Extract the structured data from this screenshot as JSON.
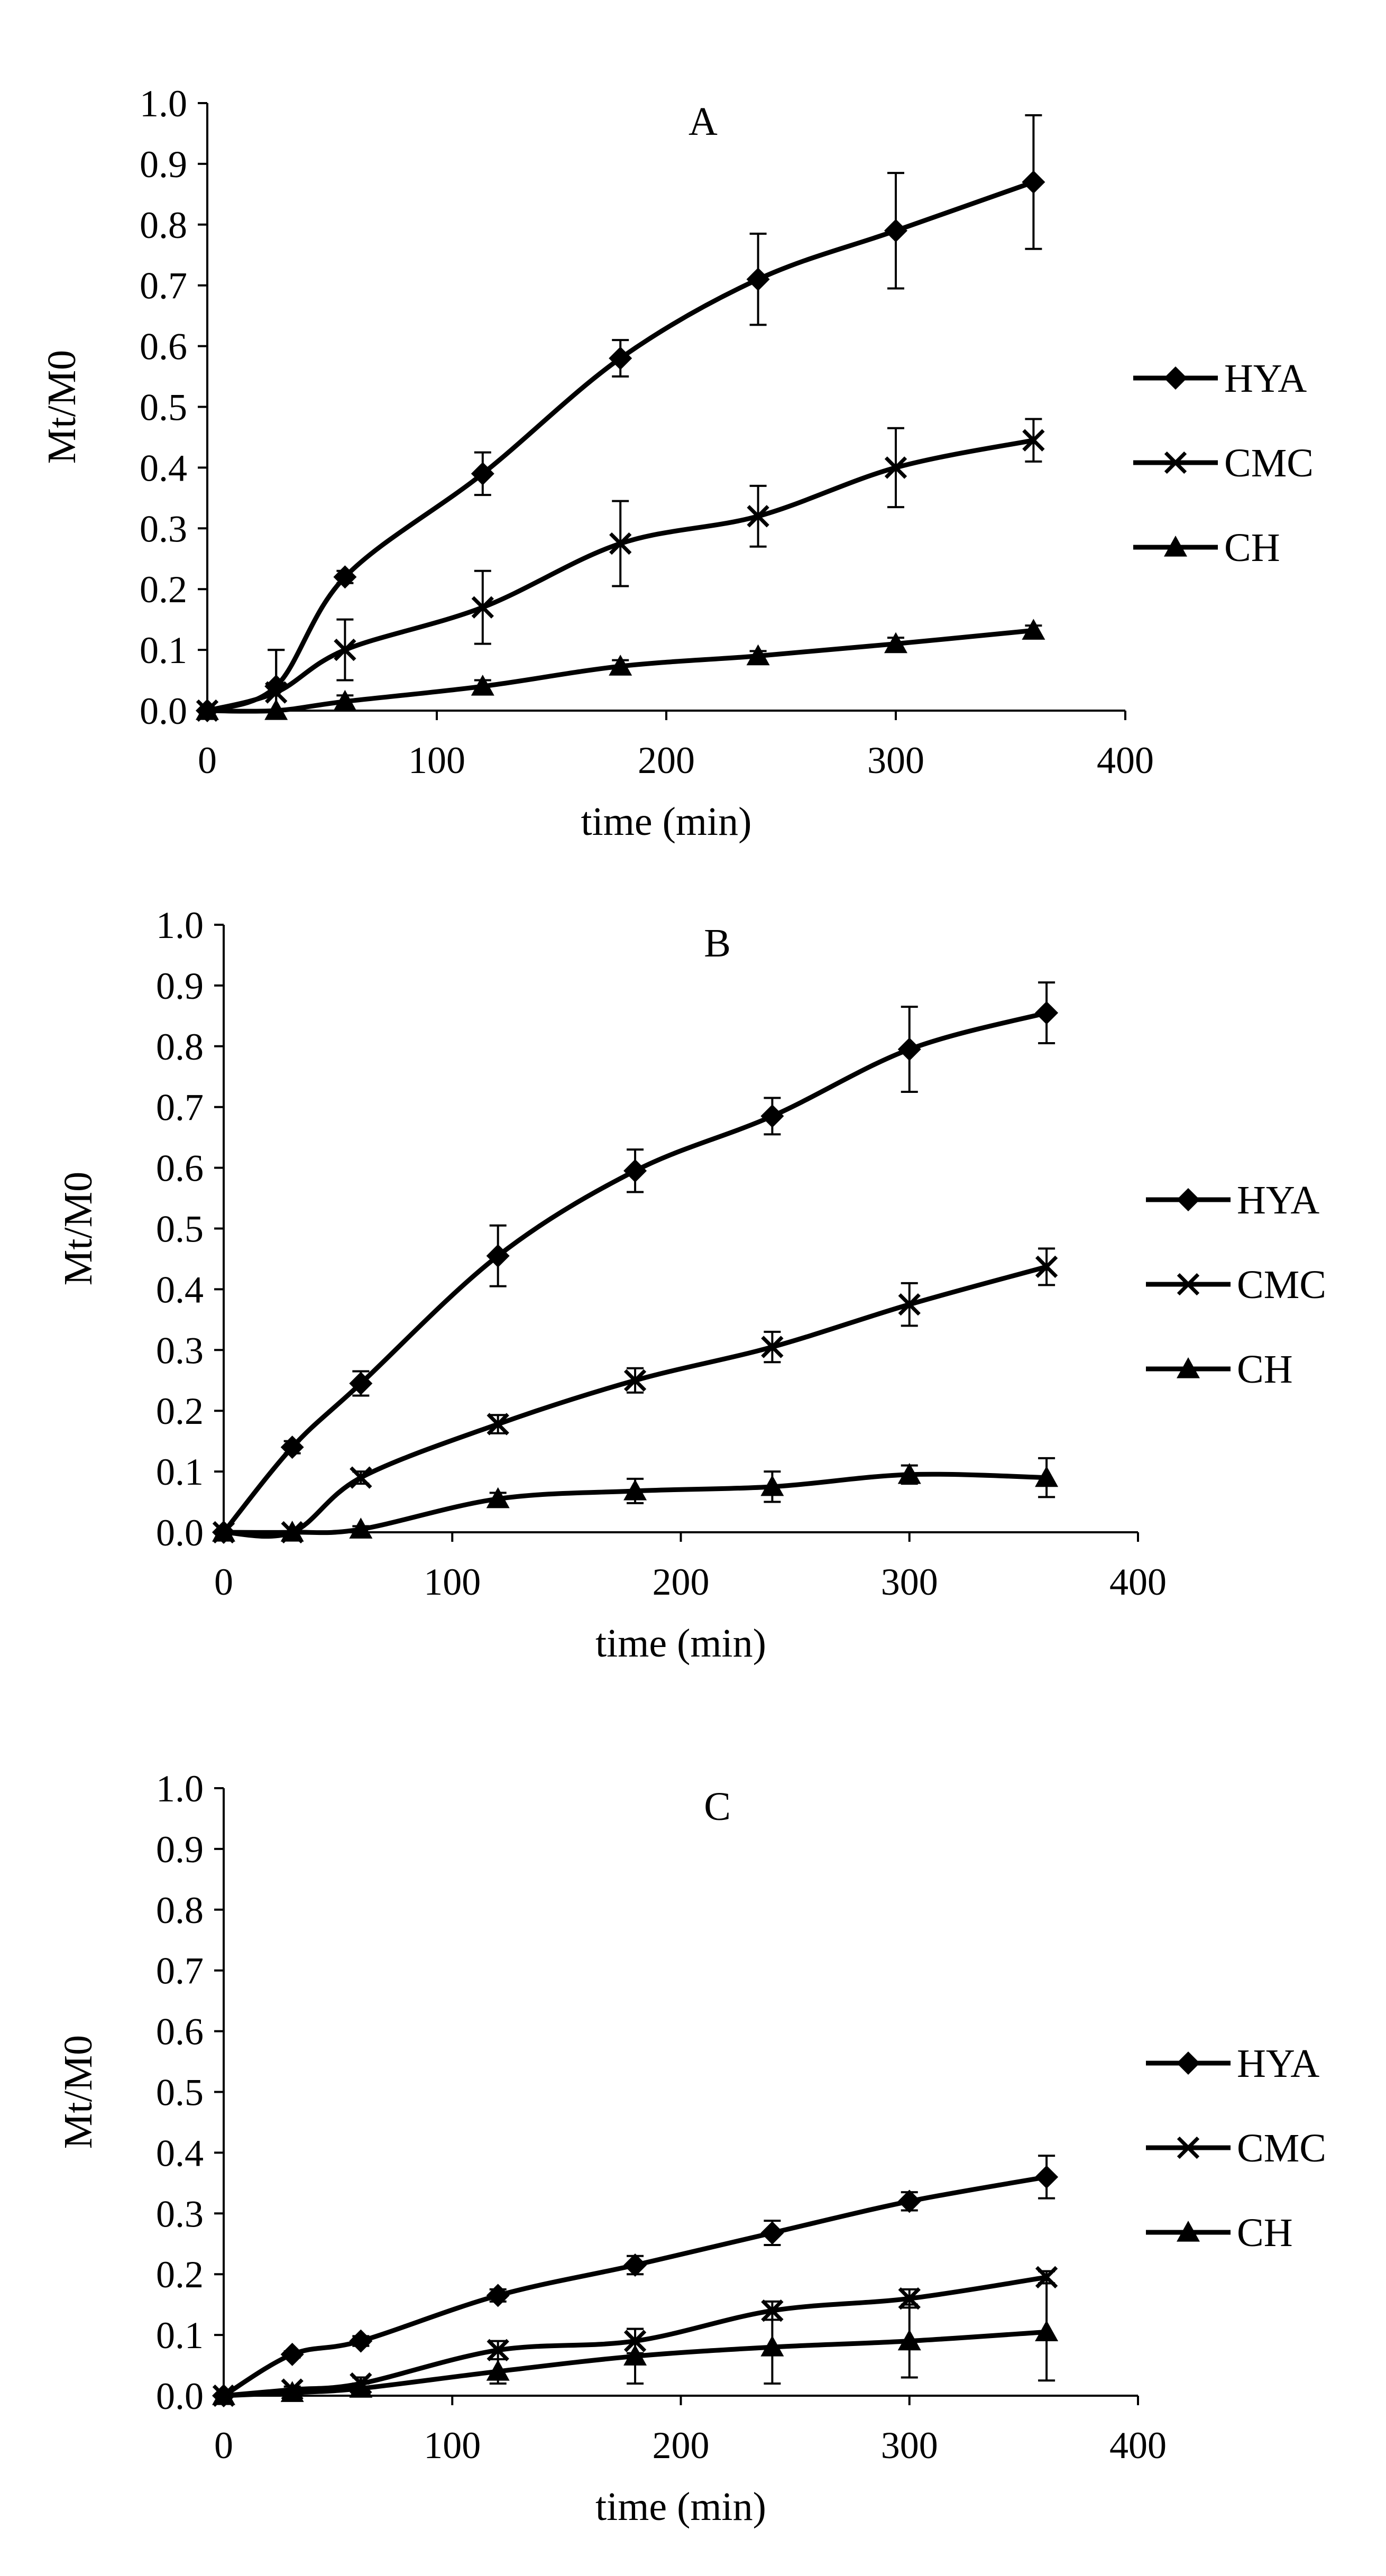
{
  "chart_data": [
    {
      "type": "line",
      "title": "A",
      "xlabel": "time (min)",
      "ylabel": "Mt/M0",
      "xlim": [
        0,
        400
      ],
      "ylim": [
        0,
        1.0
      ],
      "xticks": [
        "0",
        "100",
        "200",
        "300",
        "400"
      ],
      "yticks": [
        "0.0",
        "0.1",
        "0.2",
        "0.3",
        "0.4",
        "0.5",
        "0.6",
        "0.7",
        "0.8",
        "0.9",
        "1.0"
      ],
      "x": [
        0,
        30,
        60,
        120,
        180,
        240,
        300,
        360
      ],
      "series": [
        {
          "name": "HYA",
          "marker": "diamond",
          "values": [
            0,
            0.04,
            0.22,
            0.39,
            0.58,
            0.71,
            0.79,
            0.87
          ],
          "errors": [
            0,
            0.06,
            0.01,
            0.035,
            0.03,
            0.075,
            0.095,
            0.11
          ]
        },
        {
          "name": "CMC",
          "marker": "star",
          "values": [
            0,
            0.03,
            0.1,
            0.17,
            0.275,
            0.32,
            0.4,
            0.445
          ],
          "errors": [
            0,
            0.07,
            0.05,
            0.06,
            0.07,
            0.05,
            0.065,
            0.035
          ]
        },
        {
          "name": "CH",
          "marker": "triangle",
          "values": [
            0,
            0,
            0.015,
            0.04,
            0.073,
            0.09,
            0.11,
            0.132
          ],
          "errors": [
            0,
            0,
            0.01,
            0.01,
            0.01,
            0.008,
            0.01,
            0.008
          ]
        }
      ]
    },
    {
      "type": "line",
      "title": "B",
      "xlabel": "time (min)",
      "ylabel": "Mt/M0",
      "xlim": [
        0,
        400
      ],
      "ylim": [
        0,
        1.0
      ],
      "xticks": [
        "0",
        "100",
        "200",
        "300",
        "400"
      ],
      "yticks": [
        "0.0",
        "0.1",
        "0.2",
        "0.3",
        "0.4",
        "0.5",
        "0.6",
        "0.7",
        "0.8",
        "0.9",
        "1.0"
      ],
      "x": [
        0,
        30,
        60,
        120,
        180,
        240,
        300,
        360
      ],
      "series": [
        {
          "name": "HYA",
          "marker": "diamond",
          "values": [
            0,
            0.14,
            0.245,
            0.455,
            0.595,
            0.685,
            0.795,
            0.855
          ],
          "errors": [
            0,
            0.01,
            0.02,
            0.05,
            0.035,
            0.03,
            0.07,
            0.05
          ]
        },
        {
          "name": "CMC",
          "marker": "star",
          "values": [
            0,
            0,
            0.09,
            0.178,
            0.25,
            0.305,
            0.375,
            0.437
          ],
          "errors": [
            0,
            0,
            0.01,
            0.015,
            0.02,
            0.025,
            0.035,
            0.03
          ]
        },
        {
          "name": "CH",
          "marker": "triangle",
          "values": [
            0,
            0,
            0.005,
            0.055,
            0.068,
            0.075,
            0.095,
            0.09
          ],
          "errors": [
            0,
            0,
            0.005,
            0.01,
            0.02,
            0.025,
            0.015,
            0.032
          ]
        }
      ]
    },
    {
      "type": "line",
      "title": "C",
      "xlabel": "time (min)",
      "ylabel": "Mt/M0",
      "xlim": [
        0,
        400
      ],
      "ylim": [
        0,
        1.0
      ],
      "xticks": [
        "0",
        "100",
        "200",
        "300",
        "400"
      ],
      "yticks": [
        "0.0",
        "0.1",
        "0.2",
        "0.3",
        "0.4",
        "0.5",
        "0.6",
        "0.7",
        "0.8",
        "0.9",
        "1.0"
      ],
      "x": [
        0,
        30,
        60,
        120,
        180,
        240,
        300,
        360
      ],
      "series": [
        {
          "name": "HYA",
          "marker": "diamond",
          "values": [
            0,
            0.068,
            0.09,
            0.165,
            0.215,
            0.268,
            0.32,
            0.36
          ],
          "errors": [
            0,
            0.005,
            0.008,
            0.01,
            0.015,
            0.02,
            0.015,
            0.035
          ]
        },
        {
          "name": "CMC",
          "marker": "star",
          "values": [
            0,
            0.01,
            0.02,
            0.075,
            0.09,
            0.14,
            0.16,
            0.195
          ],
          "errors": [
            0,
            0.005,
            0.01,
            0.015,
            0.02,
            0.015,
            0.015,
            0.01
          ]
        },
        {
          "name": "CH",
          "marker": "triangle",
          "values": [
            0,
            0.005,
            0.012,
            0.04,
            0.065,
            0.08,
            0.09,
            0.105
          ],
          "errors": [
            0,
            0.003,
            0.008,
            0.02,
            0.045,
            0.06,
            0.06,
            0.08
          ]
        }
      ]
    }
  ]
}
